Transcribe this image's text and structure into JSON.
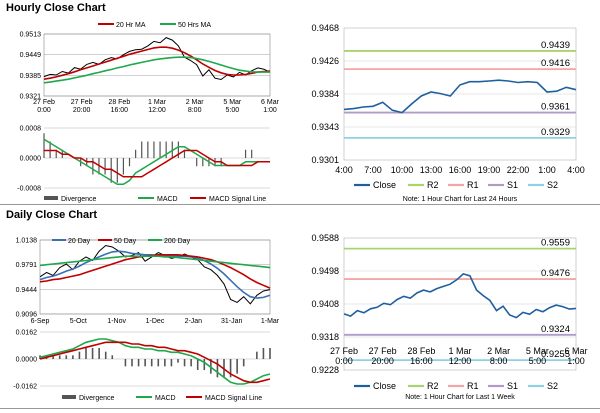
{
  "hourly_title": "Hourly Close Chart",
  "daily_title": "Daily Close Chart",
  "chart_data": [
    {
      "id": "hourly-price-ma",
      "type": "line",
      "title": "",
      "legend": [
        "20 Hr MA",
        "50 Hrs MA"
      ],
      "colors": {
        "close": "#000000",
        "ma20": "#c00000",
        "ma50": "#1fa84a"
      },
      "x_labels": [
        "27 Feb\n0:00",
        "27 Feb\n20:00",
        "28 Feb\n16:00",
        "1 Mar\n12:00",
        "2 Mar\n8:00",
        "5 Mar\n5:00",
        "6 Mar\n1:00"
      ],
      "y_ticks": [
        0.9321,
        0.9385,
        0.9449,
        0.9513
      ],
      "ylim": [
        0.9321,
        0.9513
      ],
      "series": [
        {
          "name": "Close",
          "values": [
            0.9381,
            0.9388,
            0.9386,
            0.9397,
            0.9392,
            0.9409,
            0.9404,
            0.9419,
            0.9425,
            0.9419,
            0.9433,
            0.944,
            0.9436,
            0.9449,
            0.9459,
            0.9464,
            0.9466,
            0.9476,
            0.949,
            0.9486,
            0.9502,
            0.9494,
            0.9476,
            0.9441,
            0.9431,
            0.9418,
            0.9383,
            0.9402,
            0.9376,
            0.9372,
            0.9386,
            0.938,
            0.9394,
            0.9386,
            0.9399,
            0.9408,
            0.9404,
            0.9395
          ]
        },
        {
          "name": "20 Hr MA",
          "values": [
            0.9373,
            0.9376,
            0.938,
            0.9385,
            0.939,
            0.9396,
            0.9402,
            0.9408,
            0.9414,
            0.942,
            0.9426,
            0.9432,
            0.9438,
            0.9444,
            0.945,
            0.9455,
            0.946,
            0.9465,
            0.947,
            0.9472,
            0.9472,
            0.9469,
            0.9463,
            0.9455,
            0.9445,
            0.9433,
            0.942,
            0.941,
            0.94,
            0.9393,
            0.9388,
            0.9386,
            0.9386,
            0.9388,
            0.9391,
            0.9395,
            0.9397,
            0.9398
          ]
        },
        {
          "name": "50 Hrs MA",
          "values": [
            0.9362,
            0.9364,
            0.9367,
            0.937,
            0.9373,
            0.9377,
            0.9381,
            0.9385,
            0.939,
            0.9394,
            0.9399,
            0.9403,
            0.9408,
            0.9412,
            0.9417,
            0.9421,
            0.9425,
            0.9429,
            0.9433,
            0.9436,
            0.9438,
            0.944,
            0.9441,
            0.9441,
            0.944,
            0.9437,
            0.9433,
            0.9428,
            0.9423,
            0.9417,
            0.9411,
            0.9406,
            0.9401,
            0.9398,
            0.9396,
            0.9395,
            0.9395,
            0.9395
          ]
        }
      ]
    },
    {
      "id": "hourly-macd",
      "type": "line",
      "legend": [
        "Divergence",
        "MACD",
        "MACD Signal Line"
      ],
      "y_ticks": [
        "0.0008",
        "0.0000",
        "-0.0008"
      ],
      "ylim": [
        -0.0008,
        0.0008
      ],
      "series": [
        {
          "name": "MACD",
          "values": [
            0.0005,
            0.0004,
            0.0003,
            0.0002,
            0.0001,
            0.0,
            -0.0001,
            -0.0002,
            -0.0003,
            -0.0004,
            -0.0005,
            -0.0006,
            -0.0007,
            -0.0007,
            -0.0006,
            -0.0004,
            -0.0003,
            -0.0002,
            -0.0001,
            0.0,
            0.0001,
            0.0002,
            0.0003,
            0.0003,
            0.0002,
            0.0001,
            0.0,
            -0.0001,
            -0.0002,
            -0.0002,
            -0.0002,
            -0.0002,
            -0.0002,
            -0.0001,
            -0.0001,
            -0.0001,
            -0.0001,
            -0.0001
          ]
        },
        {
          "name": "MACD Signal Line",
          "values": [
            0.0002,
            0.0002,
            0.0002,
            0.0001,
            0.0001,
            0.0,
            0.0,
            -0.0001,
            -0.0001,
            -0.0002,
            -0.0003,
            -0.0003,
            -0.0004,
            -0.0005,
            -0.0005,
            -0.0005,
            -0.0005,
            -0.0004,
            -0.0003,
            -0.0002,
            -0.0001,
            0.0,
            0.0001,
            0.0002,
            0.0002,
            0.0002,
            0.0001,
            0.0,
            -0.0001,
            -0.0001,
            -0.0002,
            -0.0002,
            -0.0002,
            -0.0002,
            -0.0002,
            -0.0001,
            -0.0001,
            -0.0001
          ]
        }
      ]
    },
    {
      "id": "hourly-24h",
      "type": "line",
      "note": "Note: 1 Hour Chart for Last 24 Hours",
      "x_labels": [
        "4:00",
        "7:00",
        "10:00",
        "13:00",
        "16:00",
        "19:00",
        "22:00",
        "1:00",
        "4:00"
      ],
      "y_ticks": [
        "0.9468",
        "0.9426",
        "0.9384",
        "0.9343",
        "0.9301"
      ],
      "ylim": [
        0.9301,
        0.9468
      ],
      "levels": [
        {
          "name": "R2",
          "value": "0.9439",
          "color": "#a8d46f"
        },
        {
          "name": "R1",
          "value": "0.9416",
          "color": "#f4a6a6"
        },
        {
          "name": "S1",
          "value": "0.9361",
          "color": "#b09ac8"
        },
        {
          "name": "S2",
          "value": "0.9329",
          "color": "#8fd0e6"
        }
      ],
      "legend": [
        "Close",
        "R2",
        "R1",
        "S1",
        "S2"
      ],
      "series": [
        {
          "name": "Close",
          "values": [
            0.9365,
            0.9366,
            0.9368,
            0.9369,
            0.9374,
            0.9364,
            0.9361,
            0.9372,
            0.9382,
            0.9387,
            0.9385,
            0.9382,
            0.9396,
            0.94,
            0.94,
            0.9401,
            0.9402,
            0.9401,
            0.9399,
            0.94,
            0.9399,
            0.9387,
            0.9388,
            0.9393,
            0.939
          ]
        }
      ]
    },
    {
      "id": "daily-price-ma",
      "type": "line",
      "legend": [
        "20 Day",
        "50 Day",
        "200 Day"
      ],
      "x_labels": [
        "6-Sep",
        "5-Oct",
        "1-Nov",
        "1-Dec",
        "2-Jan",
        "31-Jan",
        "1-Mar"
      ],
      "y_ticks": [
        0.9096,
        0.9444,
        0.9791,
        1.0138
      ],
      "ylim": [
        0.9096,
        1.0138
      ],
      "series": [
        {
          "name": "Close",
          "values": [
            0.962,
            0.968,
            0.964,
            0.975,
            0.98,
            0.972,
            0.984,
            0.99,
            0.985,
            0.998,
            1.006,
            1.004,
            0.998,
            0.99,
            0.992,
            0.996,
            0.984,
            0.99,
            0.996,
            0.992,
            0.988,
            0.99,
            0.994,
            0.99,
            0.986,
            0.976,
            0.972,
            0.964,
            0.952,
            0.93,
            0.926,
            0.934,
            0.924,
            0.936,
            0.942,
            0.944
          ]
        },
        {
          "name": "20 Day",
          "values": [
            0.958,
            0.961,
            0.963,
            0.966,
            0.97,
            0.973,
            0.977,
            0.982,
            0.986,
            0.99,
            0.994,
            0.997,
            0.998,
            0.997,
            0.995,
            0.994,
            0.993,
            0.993,
            0.992,
            0.992,
            0.991,
            0.991,
            0.991,
            0.99,
            0.988,
            0.985,
            0.98,
            0.974,
            0.966,
            0.957,
            0.948,
            0.94,
            0.934,
            0.932,
            0.933,
            0.936
          ]
        },
        {
          "name": "50 Day",
          "values": [
            0.955,
            0.956,
            0.958,
            0.959,
            0.961,
            0.963,
            0.965,
            0.968,
            0.971,
            0.974,
            0.977,
            0.98,
            0.983,
            0.986,
            0.988,
            0.99,
            0.991,
            0.992,
            0.993,
            0.993,
            0.993,
            0.993,
            0.992,
            0.991,
            0.99,
            0.988,
            0.986,
            0.983,
            0.979,
            0.975,
            0.97,
            0.965,
            0.959,
            0.954,
            0.95,
            0.946
          ]
        },
        {
          "name": "200 Day",
          "values": [
            0.978,
            0.979,
            0.98,
            0.981,
            0.982,
            0.983,
            0.984,
            0.985,
            0.986,
            0.987,
            0.988,
            0.989,
            0.99,
            0.991,
            0.991,
            0.991,
            0.991,
            0.991,
            0.991,
            0.99,
            0.99,
            0.989,
            0.988,
            0.987,
            0.986,
            0.985,
            0.984,
            0.983,
            0.982,
            0.981,
            0.98,
            0.979,
            0.978,
            0.977,
            0.976,
            0.975
          ]
        }
      ]
    },
    {
      "id": "daily-macd",
      "type": "line",
      "legend": [
        "Divergence",
        "MACD",
        "MACD Signal Line"
      ],
      "y_ticks": [
        "0.0162",
        "0.0000",
        "-0.0162"
      ],
      "ylim": [
        -0.0162,
        0.0162
      ],
      "series": [
        {
          "name": "MACD",
          "values": [
            0.001,
            0.002,
            0.003,
            0.004,
            0.005,
            0.006,
            0.008,
            0.01,
            0.011,
            0.012,
            0.012,
            0.011,
            0.01,
            0.008,
            0.007,
            0.007,
            0.006,
            0.006,
            0.005,
            0.005,
            0.004,
            0.004,
            0.003,
            0.002,
            0.0,
            -0.002,
            -0.005,
            -0.008,
            -0.011,
            -0.014,
            -0.015,
            -0.015,
            -0.014,
            -0.012,
            -0.01,
            -0.009
          ]
        },
        {
          "name": "MACD Signal Line",
          "values": [
            0.0,
            0.001,
            0.002,
            0.003,
            0.004,
            0.005,
            0.006,
            0.007,
            0.008,
            0.009,
            0.01,
            0.01,
            0.01,
            0.01,
            0.009,
            0.009,
            0.008,
            0.008,
            0.007,
            0.007,
            0.006,
            0.005,
            0.005,
            0.004,
            0.003,
            0.001,
            -0.001,
            -0.003,
            -0.006,
            -0.009,
            -0.011,
            -0.013,
            -0.014,
            -0.014,
            -0.013,
            -0.012
          ]
        }
      ]
    },
    {
      "id": "daily-1w",
      "type": "line",
      "note": "Note: 1 Hour Chart for Last 1 Week",
      "x_labels": [
        "27 Feb\n0:00",
        "27 Feb\n20:00",
        "28 Feb\n16:00",
        "1 Mar\n12:00",
        "2 Mar\n8:00",
        "5 Mar\n5:00",
        "6 Mar\n1:00"
      ],
      "y_ticks": [
        "0.9588",
        "0.9498",
        "0.9408",
        "0.9318",
        "0.9228"
      ],
      "ylim": [
        0.9228,
        0.9588
      ],
      "levels": [
        {
          "name": "R2",
          "value": "0.9559",
          "color": "#a8d46f"
        },
        {
          "name": "R1",
          "value": "0.9476",
          "color": "#f4a6a6"
        },
        {
          "name": "S1",
          "value": "0.9324",
          "color": "#b09ac8"
        },
        {
          "name": "S2",
          "value": "0.9255",
          "color": "#8fd0e6"
        }
      ],
      "legend": [
        "Close",
        "R2",
        "R1",
        "S1",
        "S2"
      ],
      "series": [
        {
          "name": "Close",
          "values": [
            0.9381,
            0.9375,
            0.939,
            0.9384,
            0.9395,
            0.9399,
            0.941,
            0.9406,
            0.942,
            0.9429,
            0.9424,
            0.9438,
            0.9446,
            0.9441,
            0.945,
            0.9456,
            0.9462,
            0.9474,
            0.949,
            0.9485,
            0.9446,
            0.9431,
            0.9418,
            0.939,
            0.9402,
            0.9378,
            0.9371,
            0.9385,
            0.938,
            0.9393,
            0.9387,
            0.9398,
            0.9405,
            0.9401,
            0.9394,
            0.9396
          ]
        }
      ]
    }
  ]
}
